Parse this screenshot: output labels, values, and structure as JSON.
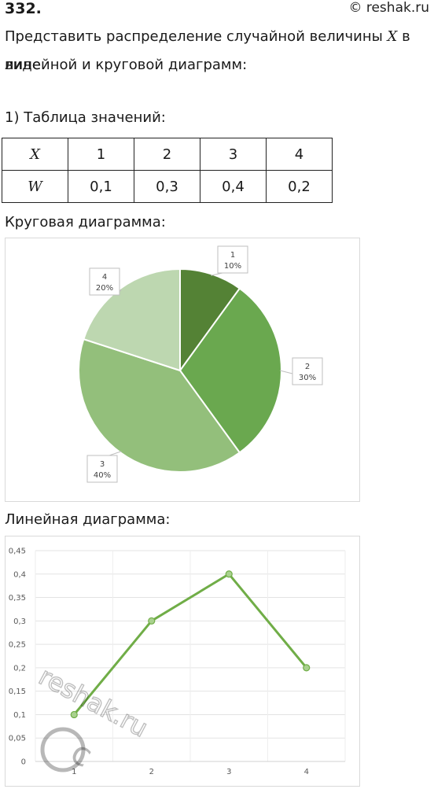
{
  "header": {
    "number": "332.",
    "site": "© reshak.ru"
  },
  "task": {
    "line1_before": "Представить распределение случайной величины ",
    "line1_var": "X",
    "line1_after": " в виде",
    "line2": "линейной и круговой диаграмм:"
  },
  "table_section": {
    "heading": "1) Таблица значений:",
    "rows": [
      {
        "label": "X",
        "cells": [
          "1",
          "2",
          "3",
          "4"
        ]
      },
      {
        "label": "W",
        "cells": [
          "0,1",
          "0,3",
          "0,4",
          "0,2"
        ]
      }
    ]
  },
  "pie_section": {
    "heading": "Круговая диаграмма:"
  },
  "line_section": {
    "heading": "Линейная диаграмма:"
  },
  "chart_data": [
    {
      "type": "pie",
      "slices": [
        {
          "label": "1",
          "value": 10,
          "percent_label": "10%",
          "color": "#548235"
        },
        {
          "label": "2",
          "value": 30,
          "percent_label": "30%",
          "color": "#6aa84f"
        },
        {
          "label": "3",
          "value": 40,
          "percent_label": "40%",
          "color": "#93bf7b"
        },
        {
          "label": "4",
          "value": 20,
          "percent_label": "20%",
          "color": "#bdd7b0"
        }
      ]
    },
    {
      "type": "line",
      "x": [
        "1",
        "2",
        "3",
        "4"
      ],
      "values": [
        0.1,
        0.3,
        0.4,
        0.2
      ],
      "ylim": [
        0,
        0.45
      ],
      "yticks": [
        "0",
        "0,05",
        "0,1",
        "0,15",
        "0,2",
        "0,25",
        "0,3",
        "0,35",
        "0,4",
        "0,45"
      ],
      "grid": true,
      "color": "#70ad47"
    }
  ],
  "watermark": {
    "text": "reshak.ru"
  }
}
